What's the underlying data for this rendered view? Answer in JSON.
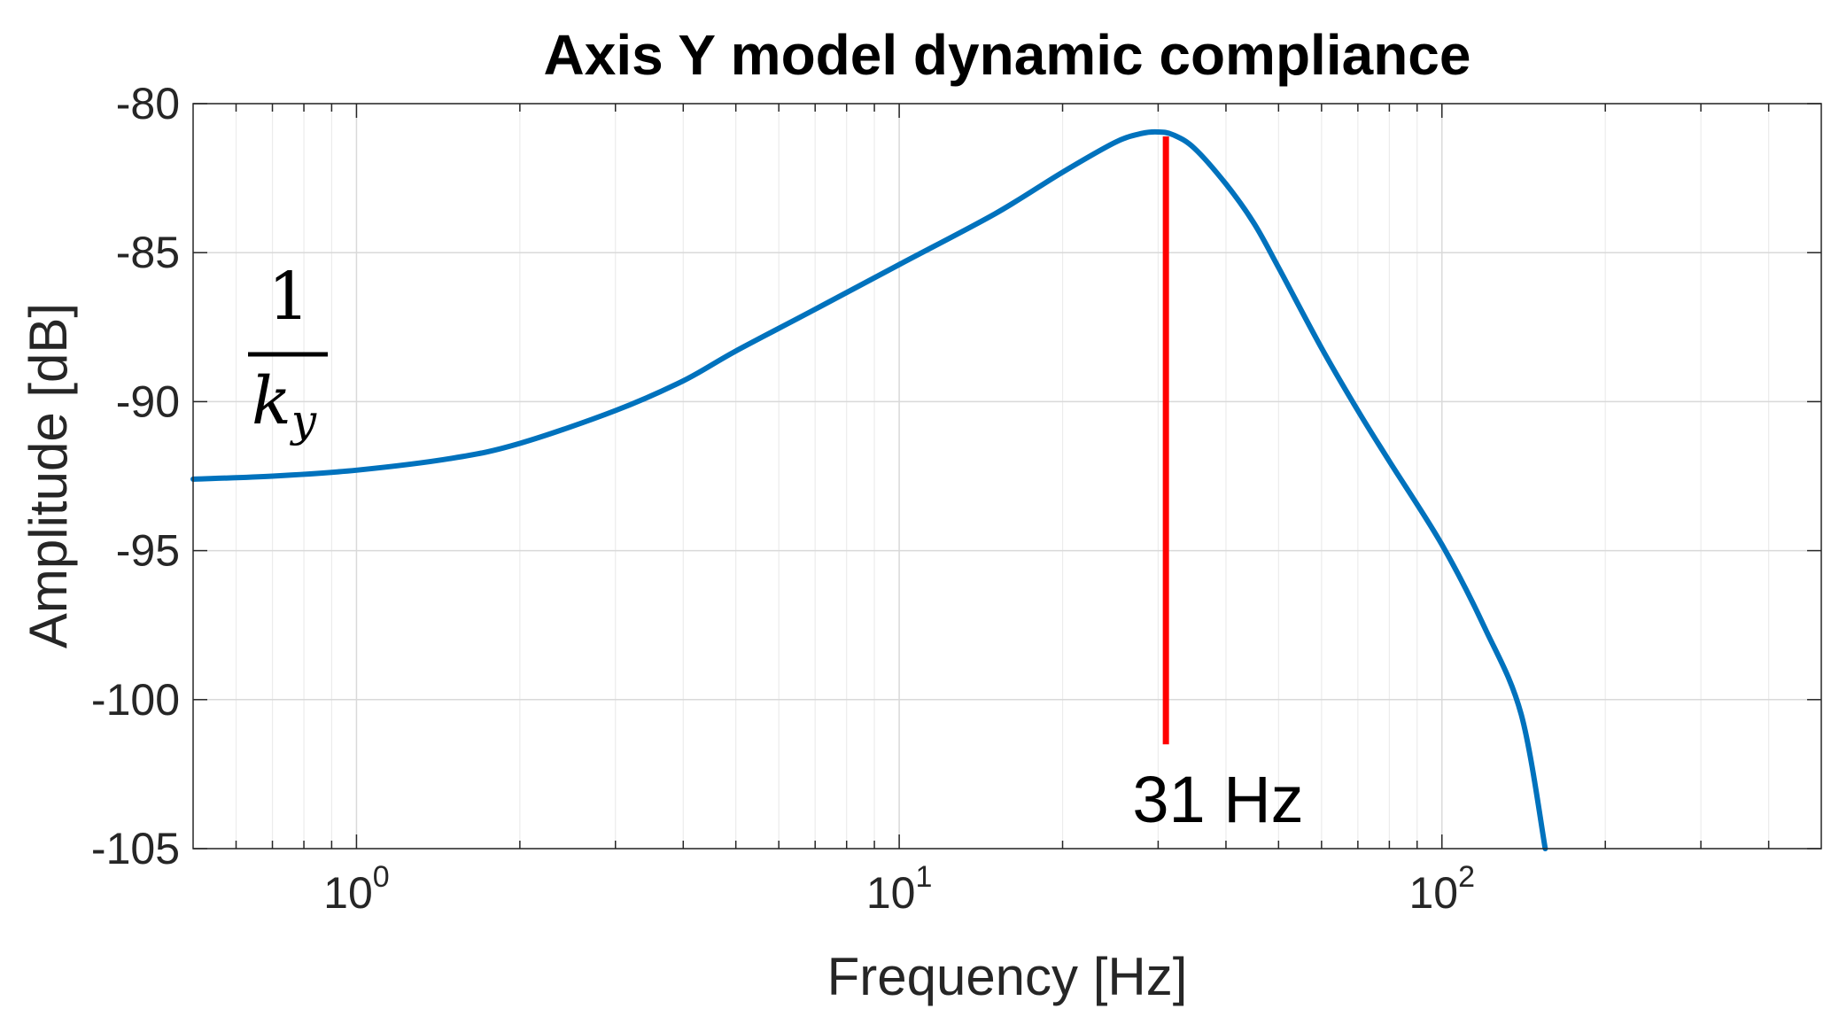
{
  "chart_data": {
    "type": "line",
    "title": "Axis Y model dynamic compliance",
    "xlabel": "Frequency [Hz]",
    "ylabel": "Amplitude [dB]",
    "xscale": "log",
    "xlim": [
      0.5,
      500
    ],
    "ylim": [
      -105,
      -80
    ],
    "grid": true,
    "x_ticks": [
      {
        "value": 1,
        "base": "10",
        "exp": "0"
      },
      {
        "value": 10,
        "base": "10",
        "exp": "1"
      },
      {
        "value": 100,
        "base": "10",
        "exp": "2"
      }
    ],
    "y_ticks": [
      {
        "value": -80,
        "label": "-80"
      },
      {
        "value": -85,
        "label": "-85"
      },
      {
        "value": -90,
        "label": "-90"
      },
      {
        "value": -95,
        "label": "-95"
      },
      {
        "value": -100,
        "label": "-100"
      },
      {
        "value": -105,
        "label": "-105"
      }
    ],
    "series": [
      {
        "color": "#0072BD",
        "x": [
          0.5,
          0.7,
          1,
          1.5,
          2,
          3,
          4,
          5,
          7,
          10,
          15,
          20,
          25,
          28,
          30,
          32,
          35,
          40,
          45,
          50,
          60,
          70,
          80,
          100,
          120,
          140,
          155
        ],
        "y": [
          -92.6,
          -92.5,
          -92.3,
          -91.9,
          -91.4,
          -90.3,
          -89.3,
          -88.3,
          -86.9,
          -85.4,
          -83.7,
          -82.3,
          -81.3,
          -81.0,
          -80.95,
          -81.05,
          -81.5,
          -82.7,
          -84.0,
          -85.5,
          -88.2,
          -90.3,
          -92.0,
          -94.8,
          -97.6,
          -100.5,
          -105.0
        ]
      }
    ],
    "annotations": {
      "resonance_line": {
        "x": 31,
        "y_top": -81.1,
        "y_bottom": -101.5,
        "color": "#FF0000"
      },
      "resonance_label": "31 Hz",
      "stiffness_numerator": "1",
      "stiffness_symbol": "k",
      "stiffness_subscript": "y"
    }
  }
}
